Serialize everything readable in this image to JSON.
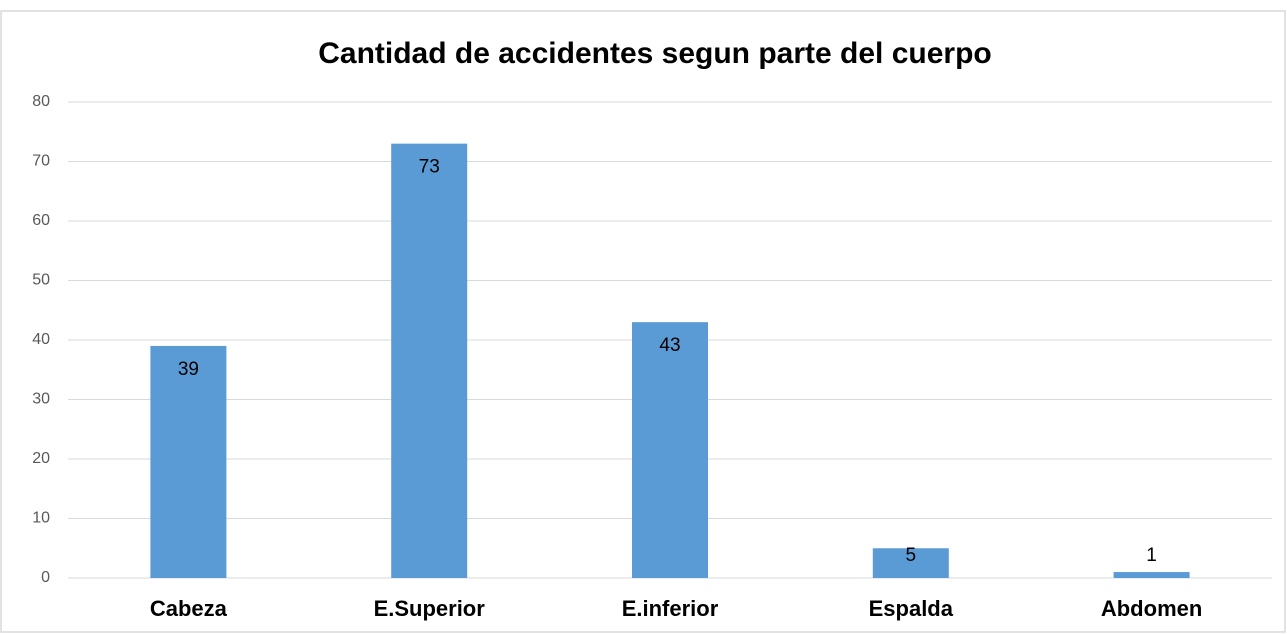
{
  "chart_data": {
    "type": "bar",
    "title": "Cantidad de accidentes segun parte del cuerpo",
    "categories": [
      "Cabeza",
      "E.Superior",
      "E.inferior",
      "Espalda",
      "Abdomen"
    ],
    "values": [
      39,
      73,
      43,
      5,
      1
    ],
    "color": "#5b9bd5",
    "ylim": [
      0,
      80
    ],
    "yticks": [
      0,
      10,
      20,
      30,
      40,
      50,
      60,
      70,
      80
    ],
    "grid": true
  }
}
